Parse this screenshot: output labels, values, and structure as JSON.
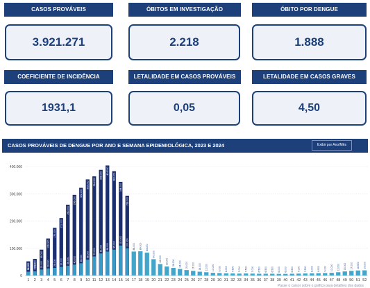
{
  "kpis": {
    "casos_provaveis": {
      "label": "CASOS PROVÁVEIS",
      "value": "3.921.271"
    },
    "obitos_investigacao": {
      "label": "ÓBITOS EM INVESTIGAÇÃO",
      "value": "2.218"
    },
    "obito_dengue": {
      "label": "ÓBITO POR DENGUE",
      "value": "1.888"
    },
    "coef_incidencia": {
      "label": "COEFICIENTE DE INCIDÊNCIA",
      "value": "1931,1"
    },
    "letalidade_provaveis": {
      "label": "LETALIDADE EM CASOS PROVÁVEIS",
      "value": "0,05"
    },
    "letalidade_graves": {
      "label": "LETALIDADE EM CASOS GRAVES",
      "value": "4,50"
    }
  },
  "chart_section": {
    "title": "CASOS PROVÁVEIS DE DENGUE POR ANO E SEMANA EPIDEMIOLÓGICA, 2023 E 2024",
    "toggle_label": "Exibir por Ano/Mês",
    "footer_note": "Passe o cursor sobre o gráfico para detalhes dos dados"
  },
  "colors": {
    "brand_navy": "#1d3f7a",
    "series_2023": "#3aa0c8",
    "series_2024": "#1b2e6e"
  },
  "chart_data": {
    "type": "bar",
    "categories": [
      "1",
      "2",
      "3",
      "4",
      "5",
      "6",
      "7",
      "8",
      "9",
      "10",
      "11",
      "12",
      "13",
      "14",
      "15",
      "16",
      "17",
      "18",
      "19",
      "20",
      "21",
      "22",
      "23",
      "24",
      "25",
      "26",
      "27",
      "28",
      "29",
      "30",
      "31",
      "32",
      "33",
      "34",
      "35",
      "36",
      "37",
      "38",
      "39",
      "40",
      "41",
      "42",
      "43",
      "44",
      "45",
      "46",
      "47",
      "48",
      "49",
      "50",
      "51",
      "52"
    ],
    "series": [
      {
        "name": "2023",
        "values": [
          14000,
          15600,
          22000,
          26000,
          28000,
          32000,
          36000,
          40000,
          45000,
          58000,
          70000,
          81000,
          88000,
          95000,
          110000,
          100000,
          88000,
          89000,
          84000,
          60000,
          42000,
          33000,
          28000,
          24000,
          20000,
          17000,
          14000,
          12000,
          10000,
          9000,
          8000,
          7500,
          7000,
          7500,
          7000,
          6500,
          6500,
          6500,
          6000,
          6000,
          6500,
          7000,
          7500,
          8000,
          8500,
          9000,
          10000,
          12000,
          15000,
          17000,
          18500,
          19000
        ]
      },
      {
        "name": "2024",
        "values": [
          52000,
          61000,
          95000,
          136000,
          175000,
          211000,
          260000,
          296000,
          322000,
          353000,
          364000,
          388000,
          404000,
          383000,
          344000,
          293000,
          null,
          null,
          null,
          null,
          null,
          null,
          null,
          null,
          null,
          null,
          null,
          null,
          null,
          null,
          null,
          null,
          null,
          null,
          null,
          null,
          null,
          null,
          null,
          null,
          null,
          null,
          null,
          null,
          null,
          null,
          null,
          null,
          null,
          null,
          null,
          null
        ]
      }
    ],
    "yticks": [
      "0",
      "100.000",
      "200.000",
      "300.000",
      "400.000"
    ],
    "ylim": [
      0,
      400000
    ],
    "grid": true
  }
}
